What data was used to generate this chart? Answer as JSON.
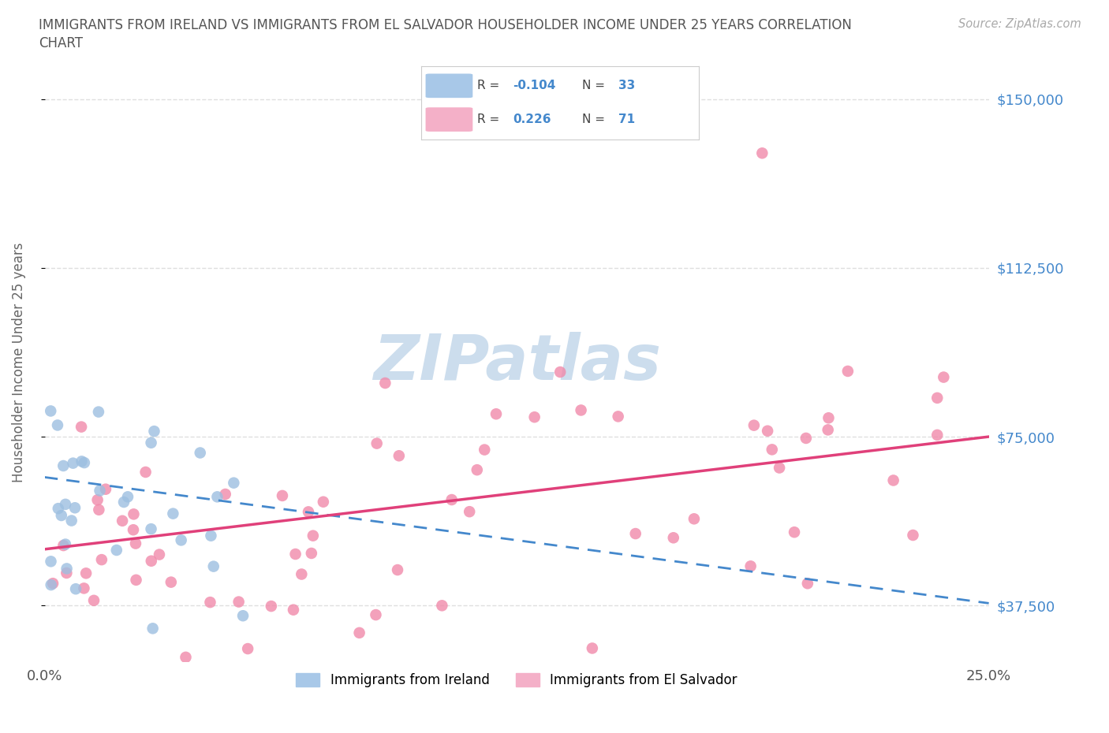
{
  "title_line1": "IMMIGRANTS FROM IRELAND VS IMMIGRANTS FROM EL SALVADOR HOUSEHOLDER INCOME UNDER 25 YEARS CORRELATION",
  "title_line2": "CHART",
  "source_text": "Source: ZipAtlas.com",
  "ylabel": "Householder Income Under 25 years",
  "xlim": [
    0.0,
    0.25
  ],
  "ylim": [
    25000,
    158000
  ],
  "yticks": [
    37500,
    75000,
    112500,
    150000
  ],
  "ytick_labels": [
    "$37,500",
    "$75,000",
    "$112,500",
    "$150,000"
  ],
  "xticks": [
    0.0,
    0.05,
    0.1,
    0.15,
    0.2,
    0.25
  ],
  "xtick_labels": [
    "0.0%",
    "",
    "",
    "",
    "",
    "25.0%"
  ],
  "watermark": "ZIPatlas",
  "ireland_scatter_color": "#9dbfe0",
  "el_salvador_scatter_color": "#f08aaa",
  "ireland_legend_color": "#a8c8e8",
  "el_salvador_legend_color": "#f4b0c8",
  "ireland_line_color": "#4488cc",
  "el_salvador_line_color": "#e0407a",
  "ireland_R": -0.104,
  "ireland_N": 33,
  "el_salvador_R": 0.226,
  "el_salvador_N": 71,
  "background_color": "#ffffff",
  "grid_color": "#d8d8d8",
  "right_tick_color": "#4488cc",
  "watermark_color": "#ccdded",
  "title_color": "#555555",
  "source_color": "#aaaaaa",
  "ylabel_color": "#666666"
}
